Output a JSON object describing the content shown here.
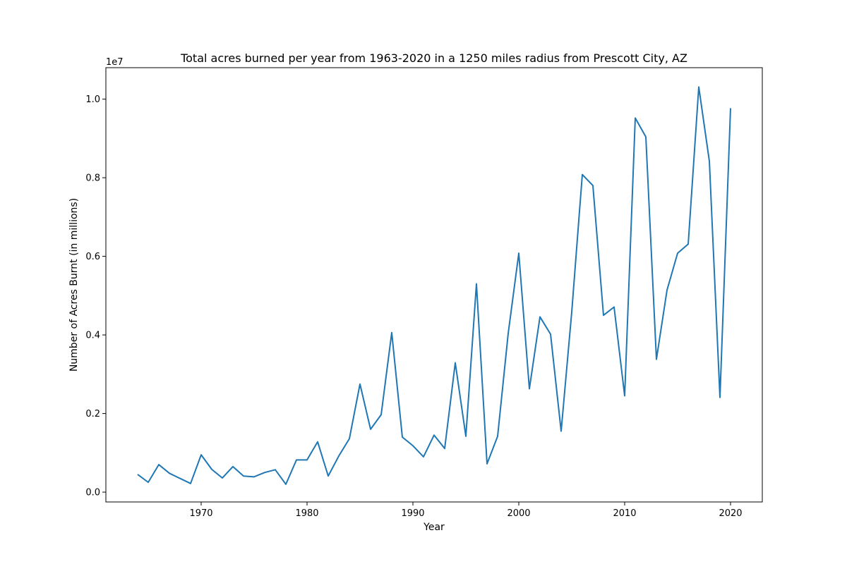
{
  "chart_data": {
    "type": "line",
    "title": "Total acres burned per year from 1963-2020 in a 1250 miles radius from Prescott City, AZ",
    "xlabel": "Year",
    "ylabel": "Number of Acres Burnt (in millions)",
    "y_offset_label": "1e7",
    "xlim": [
      1961,
      2023
    ],
    "ylim": [
      -0.025,
      1.08
    ],
    "x_ticks": [
      1970,
      1980,
      1990,
      2000,
      2010,
      2020
    ],
    "y_ticks": [
      0.0,
      0.2,
      0.4,
      0.6,
      0.8,
      1.0
    ],
    "grid": false,
    "line_color": "#1f77b4",
    "series": [
      {
        "x": [
          1964,
          1965,
          1966,
          1967,
          1968,
          1969,
          1970,
          1971,
          1972,
          1973,
          1974,
          1975,
          1976,
          1977,
          1978,
          1979,
          1980,
          1981,
          1982,
          1983,
          1984,
          1985,
          1986,
          1987,
          1988,
          1989,
          1990,
          1991,
          1992,
          1993,
          1994,
          1995,
          1996,
          1997,
          1998,
          1999,
          2000,
          2001,
          2002,
          2003,
          2004,
          2005,
          2006,
          2007,
          2008,
          2009,
          2010,
          2011,
          2012,
          2013,
          2014,
          2015,
          2016,
          2017,
          2018,
          2019,
          2020
        ],
        "values": [
          0.045,
          0.025,
          0.07,
          0.048,
          0.035,
          0.022,
          0.095,
          0.058,
          0.036,
          0.065,
          0.041,
          0.039,
          0.05,
          0.057,
          0.02,
          0.082,
          0.082,
          0.128,
          0.041,
          0.092,
          0.136,
          0.275,
          0.16,
          0.197,
          0.406,
          0.14,
          0.118,
          0.09,
          0.145,
          0.111,
          0.329,
          0.142,
          0.53,
          0.072,
          0.142,
          0.404,
          0.608,
          0.263,
          0.446,
          0.402,
          0.155,
          0.458,
          0.808,
          0.78,
          0.45,
          0.471,
          0.245,
          0.952,
          0.904,
          0.338,
          0.514,
          0.608,
          0.631,
          1.031,
          0.842,
          0.241,
          0.977
        ]
      }
    ]
  }
}
